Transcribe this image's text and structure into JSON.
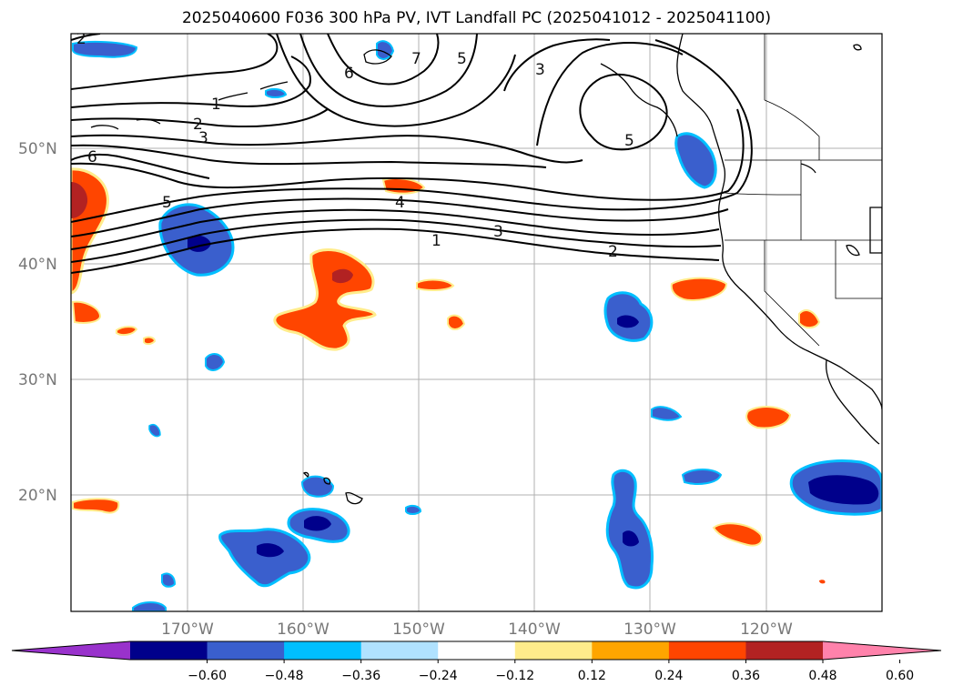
{
  "title": "2025040600 F036 300 hPa PV, IVT Landfall PC (2025041012 - 2025041100)",
  "lat_labels": [
    "50°N",
    "40°N",
    "30°N",
    "20°N"
  ],
  "lon_labels": [
    "170°W",
    "160°W",
    "150°W",
    "140°W",
    "130°W",
    "120°W"
  ],
  "contour_labels": [
    "2",
    "1",
    "2",
    "3",
    "6",
    "5",
    "4",
    "3",
    "1",
    "2",
    "6",
    "7",
    "5",
    "3",
    "5"
  ],
  "colorbar": {
    "colors": [
      "#9932cc",
      "#00008b",
      "#3a5fcd",
      "#00bfff",
      "#b0e2ff",
      "#ffffff",
      "#ffec8b",
      "#ffa500",
      "#ff4500",
      "#b22222",
      "#ff82ab"
    ],
    "ticks": [
      "−0.60",
      "−0.48",
      "−0.36",
      "−0.24",
      "−0.12",
      "0.12",
      "0.24",
      "0.36",
      "0.48",
      "0.60"
    ]
  },
  "colors": {
    "negative_dark": "#00008b",
    "negative_mid": "#3a5fcd",
    "negative_light": "#00bfff",
    "positive_orange": "#ff4500",
    "positive_dark": "#b22222",
    "positive_yellow": "#ffec8b"
  }
}
